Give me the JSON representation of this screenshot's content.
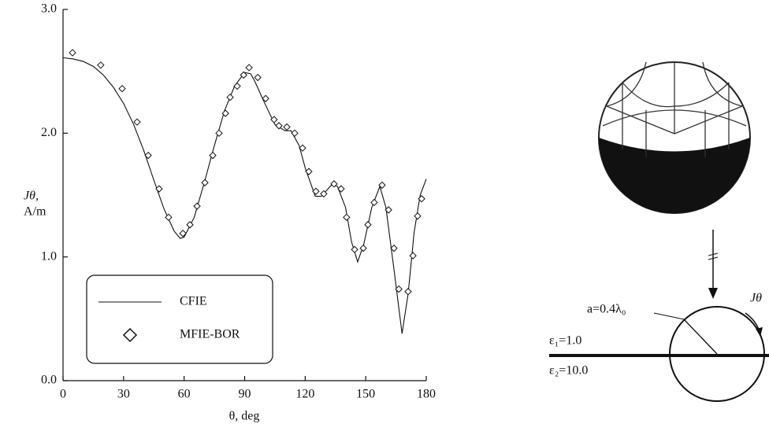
{
  "chart_data": {
    "type": "line",
    "xlabel": "θ, deg",
    "ylabel": [
      "Jθ,",
      "A/m"
    ],
    "xlim": [
      0,
      180
    ],
    "xticks": [
      0,
      30,
      60,
      90,
      120,
      150,
      180
    ],
    "ylim": [
      0,
      3
    ],
    "yticks": [
      {
        "value": 0,
        "label": "0.0"
      },
      {
        "value": 1,
        "label": "1.0"
      },
      {
        "value": 2,
        "label": "2.0"
      },
      {
        "value": 3,
        "label": "3.0"
      }
    ],
    "series": [
      {
        "name": "CFIE",
        "color": "#111111",
        "style": "line",
        "x": [
          0,
          5,
          10,
          15,
          20,
          25,
          30,
          35,
          40,
          45,
          50,
          55,
          58,
          60,
          65,
          70,
          75,
          80,
          85,
          90,
          93,
          95,
          100,
          105,
          110,
          113,
          117,
          120,
          125,
          128,
          133,
          136,
          140,
          143,
          146,
          149,
          153,
          157,
          160,
          164,
          168,
          171,
          174,
          177,
          180
        ],
        "values": [
          2.61,
          2.6,
          2.58,
          2.54,
          2.47,
          2.37,
          2.24,
          2.07,
          1.86,
          1.62,
          1.39,
          1.21,
          1.15,
          1.16,
          1.32,
          1.6,
          1.9,
          2.18,
          2.38,
          2.49,
          2.48,
          2.42,
          2.24,
          2.07,
          2.02,
          2.02,
          1.9,
          1.72,
          1.49,
          1.49,
          1.58,
          1.57,
          1.4,
          1.12,
          0.96,
          1.1,
          1.4,
          1.57,
          1.4,
          0.9,
          0.38,
          0.7,
          1.2,
          1.5,
          1.63
        ]
      },
      {
        "name": "MFIE-BOR",
        "color": "#111111",
        "style": "diamond",
        "x": [
          4.7,
          18.7,
          29.3,
          36.7,
          42.2,
          47.6,
          52.3,
          59.4,
          62.9,
          66.4,
          70.3,
          74.2,
          77.3,
          80.5,
          82.8,
          86.3,
          89.5,
          92.2,
          96.5,
          100.4,
          104.6,
          107,
          110.9,
          114.8,
          118.7,
          121.8,
          125.3,
          129.2,
          134.3,
          137.8,
          140.5,
          144.5,
          148.8,
          151.1,
          154.2,
          158.1,
          161.3,
          164,
          166.4,
          171,
          173.4,
          175.7,
          177.7
        ],
        "values": [
          2.65,
          2.55,
          2.36,
          2.09,
          1.82,
          1.55,
          1.32,
          1.19,
          1.26,
          1.41,
          1.6,
          1.82,
          2.0,
          2.16,
          2.29,
          2.38,
          2.47,
          2.53,
          2.45,
          2.28,
          2.11,
          2.06,
          2.05,
          2.0,
          1.88,
          1.69,
          1.53,
          1.51,
          1.59,
          1.55,
          1.32,
          1.06,
          1.07,
          1.26,
          1.44,
          1.58,
          1.38,
          1.07,
          0.74,
          0.72,
          1.01,
          1.33,
          1.47
        ]
      }
    ]
  },
  "diagram": {
    "radius_label": "a=0.4λ₀",
    "current_label": "Jθ",
    "medium_1": "ε₁=1.0",
    "medium_2": "ε₂=10.0"
  }
}
